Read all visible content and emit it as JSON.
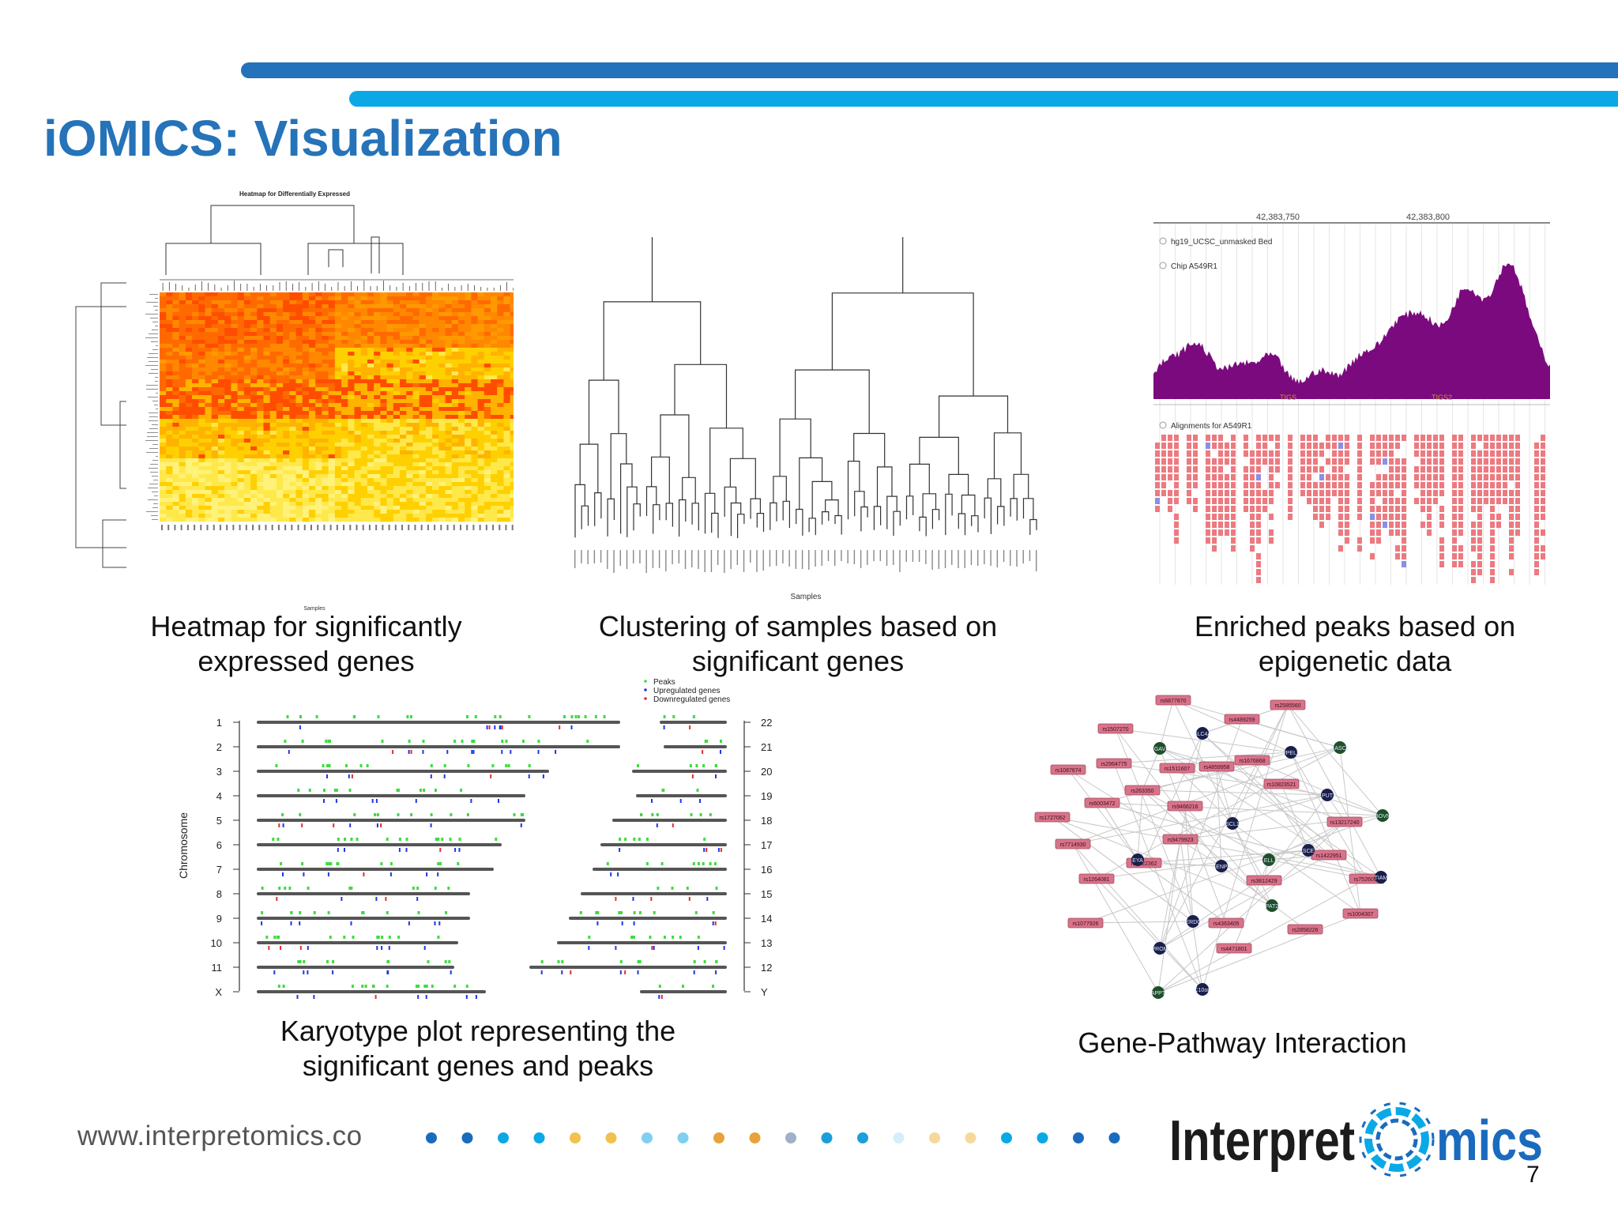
{
  "slide": {
    "title": "iOMICS: Visualization",
    "page_number": "7",
    "website": "www.interpretomics.co",
    "logo": {
      "text_left": "Interpret",
      "text_right": "mics"
    },
    "dot_colors": [
      "#1a6bbd",
      "#1a6bbd",
      "#0aa9e6",
      "#0aa9e6",
      "#f2c14e",
      "#f2c14e",
      "#7fd0f0",
      "#7fd0f0",
      "#e8a33b",
      "#e8a33b",
      "#9fb0c8",
      "#1a9fd8",
      "#1a9fd8",
      "#d6eef9",
      "#f6d99a",
      "#f6d99a",
      "#0aa9e6",
      "#0aa9e6",
      "#1a6bbd",
      "#1a6bbd"
    ]
  },
  "panels": {
    "heatmap": {
      "caption_line1": "Heatmap for significantly",
      "caption_line2": "expressed genes",
      "inner_title": "Heatmap for Differentially Expressed",
      "inner_xlabel": "Samples"
    },
    "clustering": {
      "caption_line1": "Clustering of samples based on",
      "caption_line2": "significant genes",
      "inner_xlabel": "Samples"
    },
    "peaks": {
      "caption_line1": "Enriched peaks based on",
      "caption_line2": "epigenetic data",
      "coord_left": "42,383,750",
      "coord_right": "42,383,800",
      "track1": "hg19_UCSC_unmasked Bed",
      "track2": "Chip A549R1",
      "track3": "Alignments for A549R1",
      "peak_label1": "TIGS",
      "peak_label2": "TIGS2"
    },
    "karyotype": {
      "caption_line1": "Karyotype plot representing the",
      "caption_line2": "significant genes and peaks",
      "ylabel": "Chromosome",
      "legend": [
        "Peaks",
        "Upregulated genes",
        "Downregulated genes"
      ],
      "left_chromosomes": [
        "1",
        "2",
        "3",
        "4",
        "5",
        "6",
        "7",
        "8",
        "9",
        "10",
        "11",
        "X"
      ],
      "right_chromosomes": [
        "22",
        "21",
        "20",
        "19",
        "18",
        "17",
        "16",
        "15",
        "14",
        "13",
        "12",
        "Y"
      ]
    },
    "network": {
      "caption": "Gene-Pathway Interaction",
      "snp_nodes": [
        "rs6877870",
        "rs2585560",
        "rs1507270",
        "rs4489259",
        "rs2964775",
        "rs1511607",
        "rs1676868",
        "rs1087674",
        "rs4859958",
        "rs263350",
        "rs10823521",
        "rs6003472",
        "rs9466216",
        "rs1727062",
        "rs13217240",
        "rs7714930",
        "rs9479923",
        "rs1422951",
        "rs6922362",
        "rs7526097",
        "rs1264081",
        "rs3812429",
        "rs1004307",
        "rs1077926",
        "rs4363405",
        "rs2858226",
        "rs4471801"
      ],
      "gene_nodes": [
        "GAV",
        "SLC4A",
        "VPEL1",
        "CASC6",
        "PUT",
        "SCL1",
        "BOVN",
        "EYA",
        "CENPF",
        "ELL",
        "SCE",
        "TIAM",
        "PAT2",
        "SERDC2",
        "PROM",
        "APPT",
        "C10orf"
      ]
    }
  }
}
